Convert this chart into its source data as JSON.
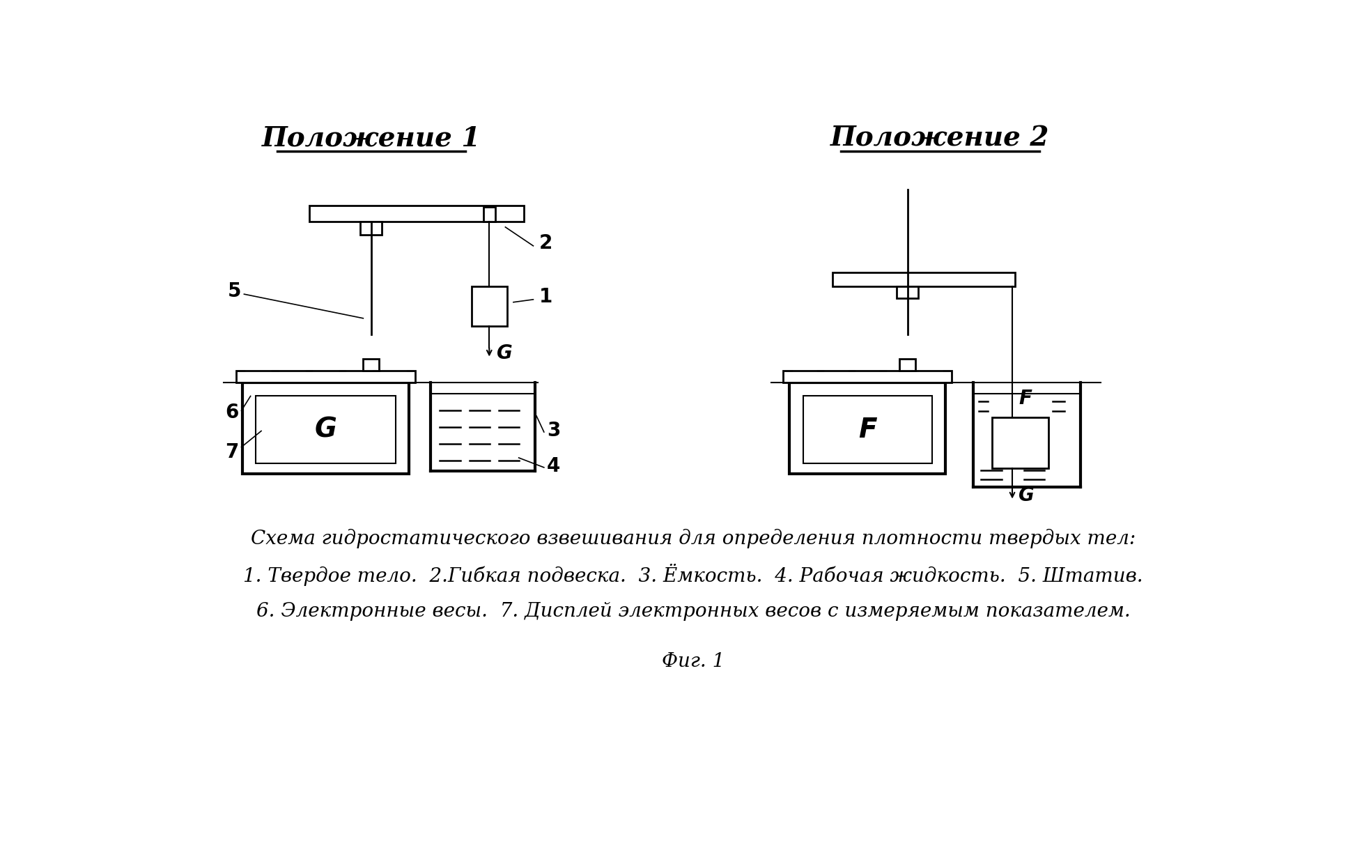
{
  "title1": "Положение 1",
  "title2": "Положение 2",
  "caption_line1": "Схема гидростатического взвешивания для определения плотности твердых тел:",
  "caption_line2": "1. Твердое тело.  2.Гибкая подвеска.  3. Ёмкость.  4. Рабочая жидкость.  5. Штатив.",
  "caption_line3": "6. Электронные весы.  7. Дисплей электронных весов с измеряемым показателем.",
  "fig_label": "Фиг. 1",
  "bg_color": "#ffffff",
  "line_color": "#000000"
}
